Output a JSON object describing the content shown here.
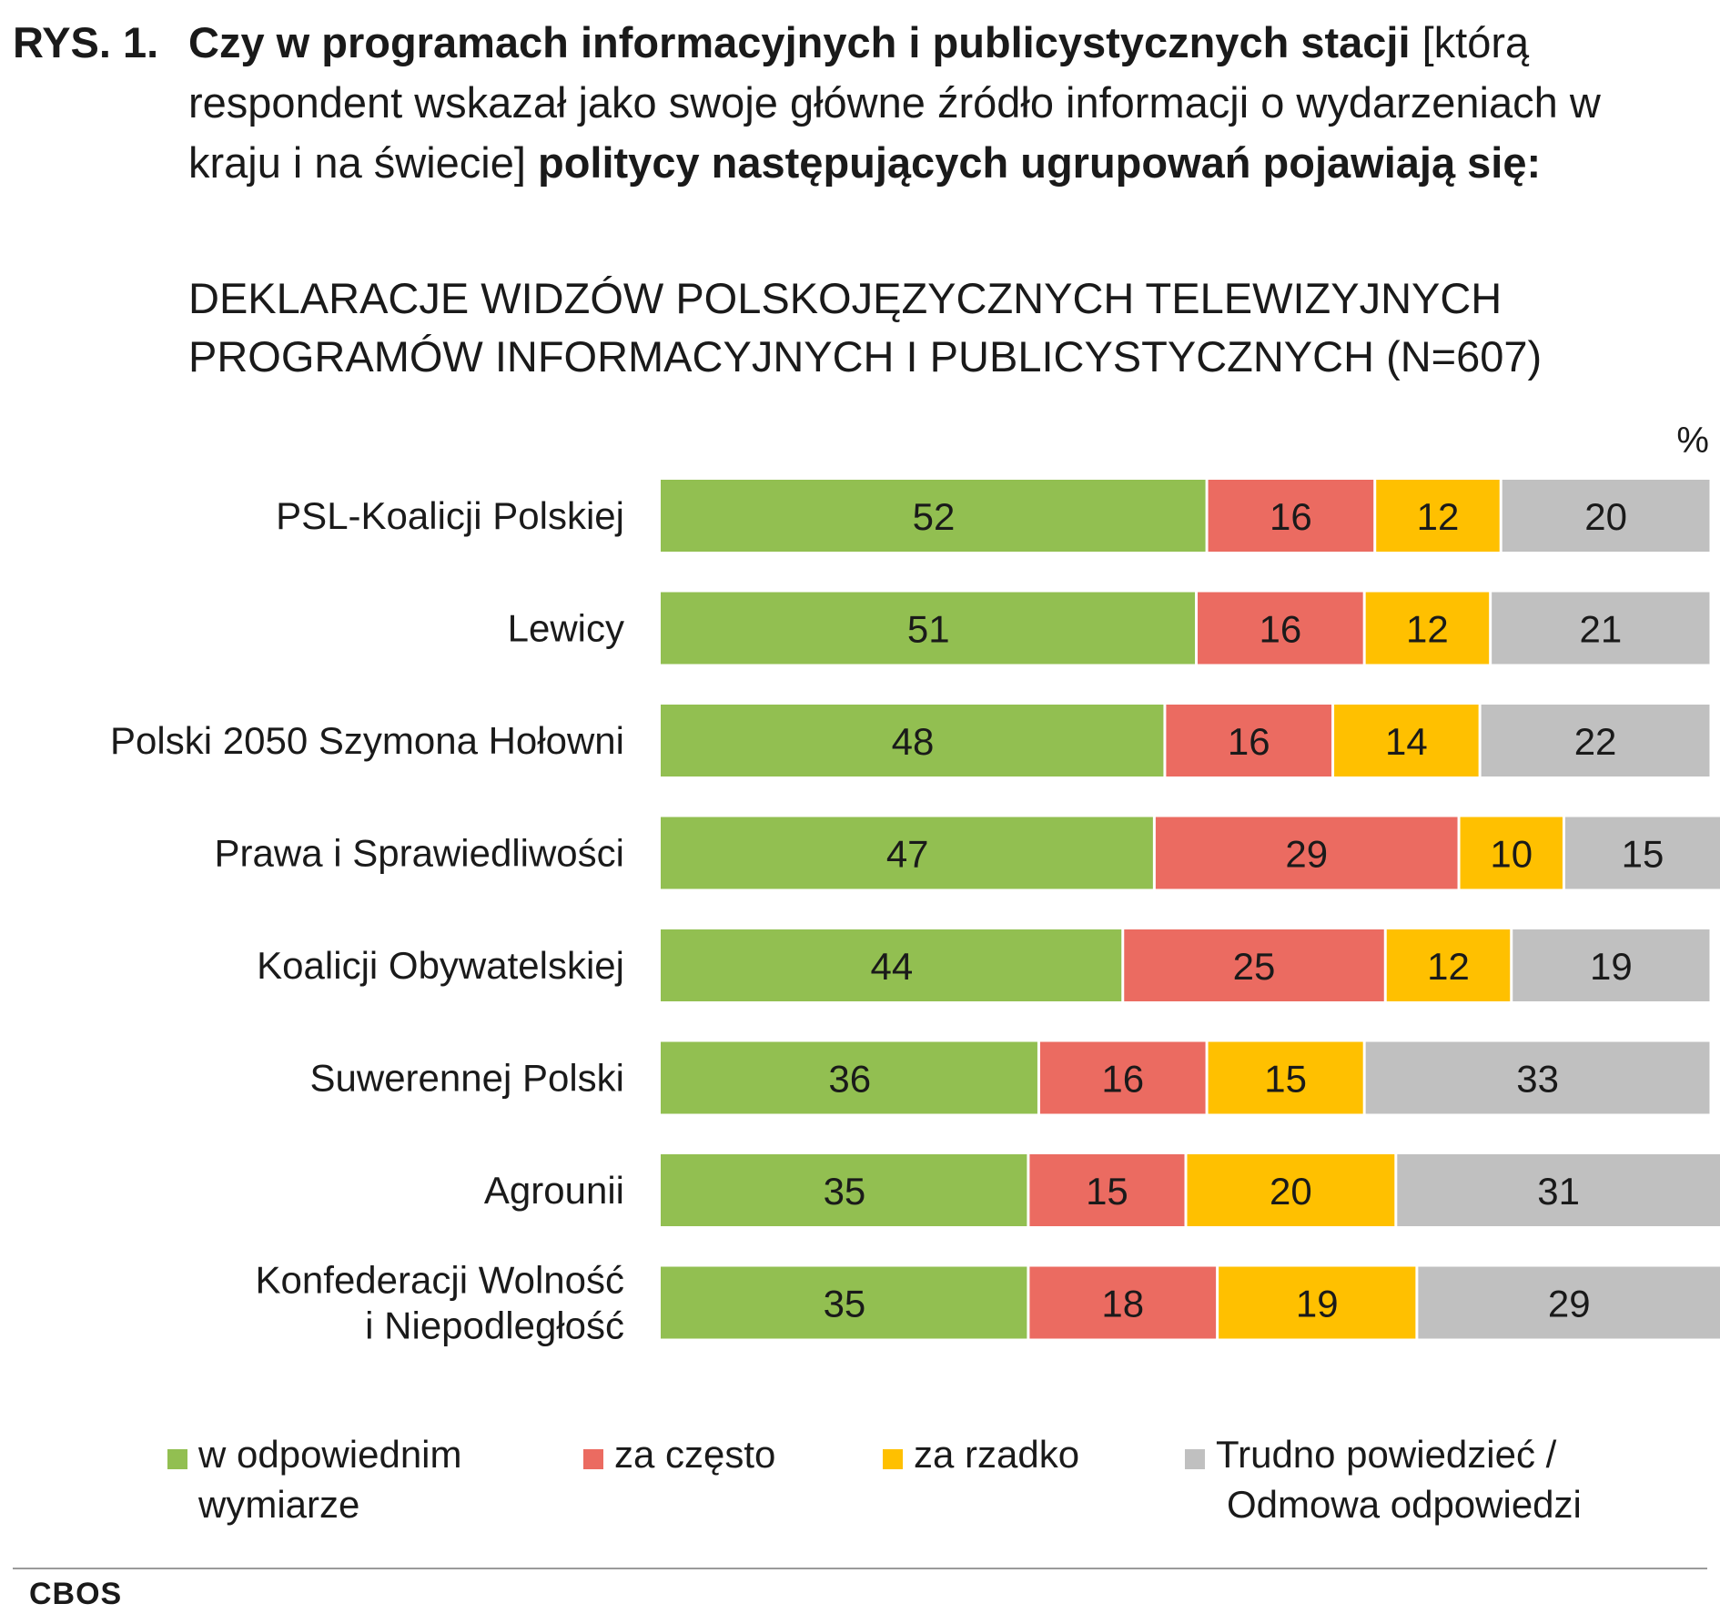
{
  "figure": {
    "label": "RYS. 1.",
    "title_bold_1": "Czy w programach informacyjnych i publicystycznych stacji",
    "title_normal": "[którą respondent wskazał jako swoje główne źródło informacji o wydarzeniach w kraju i na świecie]",
    "title_bold_2": "politycy następujących ugrupowań pojawiają się:",
    "subtitle": "DEKLARACJE WIDZÓW POLSKOJĘZYCZNYCH TELEWIZYJNYCH PROGRAMÓW INFORMACYJNYCH I PUBLICYSTYCZNYCH (N=607)",
    "unit": "%",
    "source": "CBOS"
  },
  "chart_data": {
    "type": "bar",
    "orientation": "horizontal",
    "stacked": true,
    "unit": "%",
    "categories": [
      [
        "PSL-Koalicji Polskiej"
      ],
      [
        "Lewicy"
      ],
      [
        "Polski 2050 Szymona Hołowni"
      ],
      [
        "Prawa i Sprawiedliwości"
      ],
      [
        "Koalicji Obywatelskiej"
      ],
      [
        "Suwerennej Polski"
      ],
      [
        "Agrounii"
      ],
      [
        "Konfederacji Wolność",
        "i Niepodległość"
      ]
    ],
    "series": [
      {
        "name": "w odpowiednim wymiarze",
        "name_lines": [
          "w odpowiednim",
          "wymiarze"
        ],
        "color": "#92bf51",
        "values": [
          52,
          51,
          48,
          47,
          44,
          36,
          35,
          35
        ]
      },
      {
        "name": "za często",
        "name_lines": [
          "za często"
        ],
        "color": "#eb6b61",
        "values": [
          16,
          16,
          16,
          29,
          25,
          16,
          15,
          18
        ]
      },
      {
        "name": "za rzadko",
        "name_lines": [
          "za rzadko"
        ],
        "color": "#ffc000",
        "values": [
          12,
          12,
          14,
          10,
          12,
          15,
          20,
          19
        ]
      },
      {
        "name": "Trudno powiedzieć / Odmowa odpowiedzi",
        "name_lines": [
          "Trudno powiedzieć /",
          "Odmowa odpowiedzi"
        ],
        "color": "#c0c0c0",
        "values": [
          20,
          21,
          22,
          15,
          19,
          33,
          31,
          29
        ]
      }
    ],
    "xlim": [
      0,
      100
    ],
    "grid": false,
    "legend_position": "bottom"
  }
}
